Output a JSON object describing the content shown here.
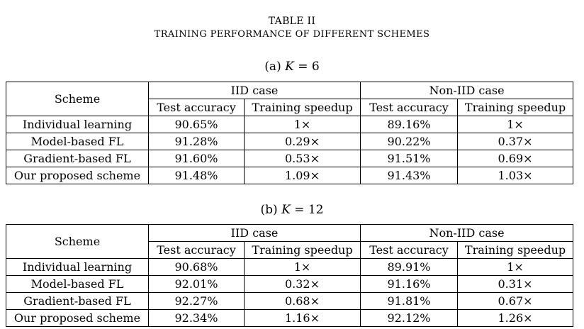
{
  "header": {
    "table_label": "TABLE II",
    "caption": "TRAINING PERFORMANCE OF DIFFERENT SCHEMES"
  },
  "col_headers": {
    "scheme": "Scheme",
    "iid": "IID case",
    "noniid": "Non-IID case",
    "test_accuracy": "Test accuracy",
    "training_speedup": "Training speedup"
  },
  "tables": [
    {
      "label_prefix": "(a)",
      "label_var": "K",
      "label_rest": " = 6",
      "rows": [
        {
          "scheme": "Individual learning",
          "iid_acc": "90.65%",
          "iid_speed": "1×",
          "non_acc": "89.16%",
          "non_speed": "1×"
        },
        {
          "scheme": "Model-based FL",
          "iid_acc": "91.28%",
          "iid_speed": "0.29×",
          "non_acc": "90.22%",
          "non_speed": "0.37×"
        },
        {
          "scheme": "Gradient-based FL",
          "iid_acc": "91.60%",
          "iid_speed": "0.53×",
          "non_acc": "91.51%",
          "non_speed": "0.69×"
        },
        {
          "scheme": "Our proposed scheme",
          "iid_acc": "91.48%",
          "iid_speed": "1.09×",
          "non_acc": "91.43%",
          "non_speed": "1.03×"
        }
      ]
    },
    {
      "label_prefix": "(b)",
      "label_var": "K",
      "label_rest": " = 12",
      "rows": [
        {
          "scheme": "Individual learning",
          "iid_acc": "90.68%",
          "iid_speed": "1×",
          "non_acc": "89.91%",
          "non_speed": "1×"
        },
        {
          "scheme": "Model-based FL",
          "iid_acc": "92.01%",
          "iid_speed": "0.32×",
          "non_acc": "91.16%",
          "non_speed": "0.31×"
        },
        {
          "scheme": "Gradient-based FL",
          "iid_acc": "92.27%",
          "iid_speed": "0.68×",
          "non_acc": "91.81%",
          "non_speed": "0.67×"
        },
        {
          "scheme": "Our proposed scheme",
          "iid_acc": "92.34%",
          "iid_speed": "1.16×",
          "non_acc": "92.12%",
          "non_speed": "1.26×"
        }
      ]
    }
  ]
}
